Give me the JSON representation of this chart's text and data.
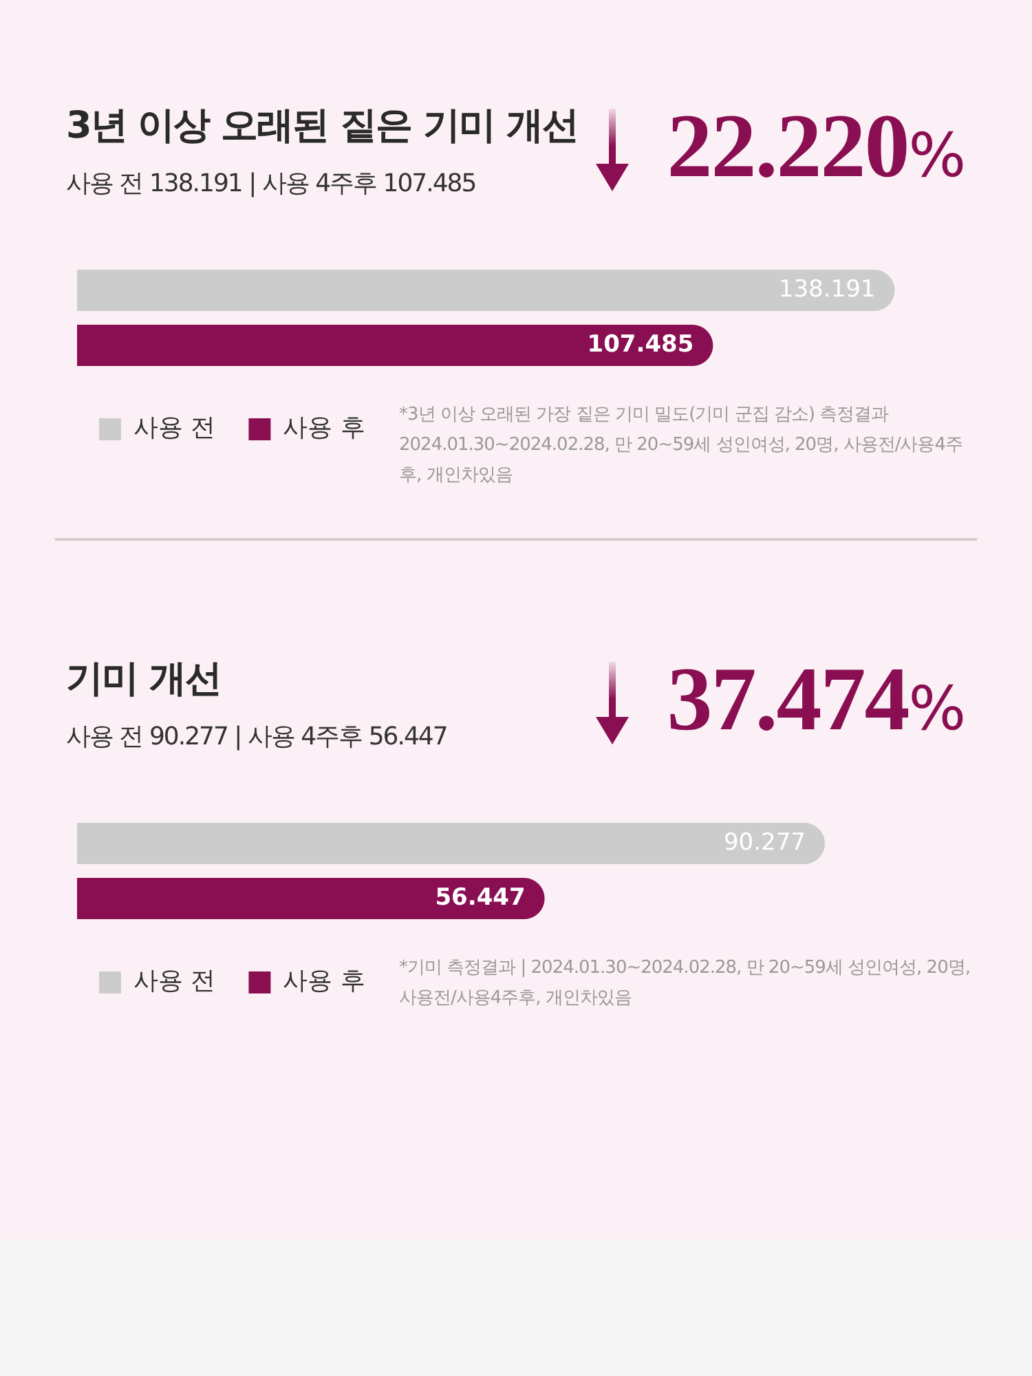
{
  "chart_data": [
    {
      "type": "bar",
      "orientation": "horizontal",
      "title": "3년 이상 오래된 짙은 기미 개선",
      "subtitle": "사용 전 138.191 | 사용 4주후 107.485",
      "categories": [
        null
      ],
      "series": [
        {
          "name": "사용 전",
          "color": "#cccccc",
          "values": [
            138.191
          ]
        },
        {
          "name": "사용 후",
          "color": "#8a0f52",
          "values": [
            107.485
          ]
        }
      ],
      "data_labels": true,
      "tick_labels": false,
      "grid": false,
      "legend": "bottom left",
      "annotations": [
        "22.220%",
        "*3년 이상 오래된 가장 짙은 기미 밀도(기미 군집 감소) 측정결과 2024.01.30~2024.02.28, 만 20~59세 성인여성, 20명, 사용전/사용4주후, 개인차있음"
      ]
    },
    {
      "type": "bar",
      "orientation": "horizontal",
      "title": "기미 개선",
      "subtitle": "사용 전 90.277 | 사용 4주후 56.447",
      "categories": [
        null
      ],
      "series": [
        {
          "name": "사용 전",
          "color": "#cccccc",
          "values": [
            90.277
          ]
        },
        {
          "name": "사용 후",
          "color": "#8a0f52",
          "values": [
            56.447
          ]
        }
      ],
      "data_labels": true,
      "tick_labels": false,
      "grid": false,
      "legend": "bottom left",
      "annotations": [
        "37.474%",
        "*기미 측정결과 | 2024.01.30~2024.02.28, 만 20~59세 성인여성, 20명, 사용전/사용4주후, 개인차있음"
      ]
    }
  ]
}
